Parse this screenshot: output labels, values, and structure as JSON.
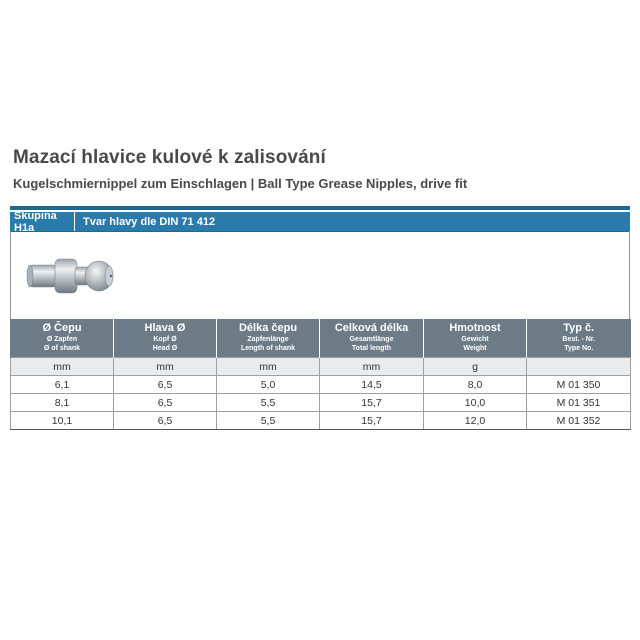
{
  "header": {
    "title": "Mazací hlavice kulové k zalisování",
    "subtitle": "Kugelschmiernippel zum Einschlagen | Ball Type Grease Nipples, drive fit"
  },
  "group": {
    "label": "Skupina H1a",
    "shape": "Tvar hlavy dle DIN 71 412"
  },
  "columns": [
    {
      "main": "Ø Čepu",
      "de": "Ø Zapfen",
      "en": "Ø of shank",
      "unit": "mm"
    },
    {
      "main": "Hlava Ø",
      "de": "Kopf Ø",
      "en": "Head Ø",
      "unit": "mm"
    },
    {
      "main": "Délka čepu",
      "de": "Zapfenlänge",
      "en": "Length of shank",
      "unit": "mm"
    },
    {
      "main": "Celková délka",
      "de": "Gesamtlänge",
      "en": "Total length",
      "unit": "mm"
    },
    {
      "main": "Hmotnost",
      "de": "Gewicht",
      "en": "Weight",
      "unit": "g"
    },
    {
      "main": "Typ č.",
      "de": "Best. - Nr.",
      "en": "Type No.",
      "unit": ""
    }
  ],
  "rows": [
    [
      "6,1",
      "6,5",
      "5,0",
      "14,5",
      "8,0",
      "M 01 350"
    ],
    [
      "8,1",
      "6,5",
      "5,5",
      "15,7",
      "10,0",
      "M 01 351"
    ],
    [
      "10,1",
      "6,5",
      "5,5",
      "15,7",
      "12,0",
      "M 01 352"
    ]
  ]
}
